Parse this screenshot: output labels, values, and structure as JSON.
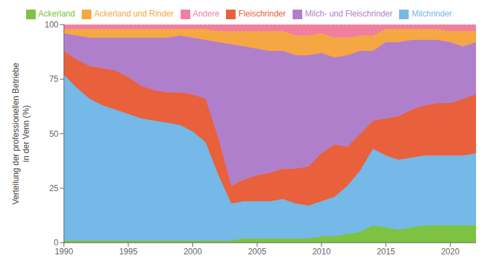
{
  "chart_data": {
    "type": "area",
    "stacked": true,
    "x": [
      1990,
      1991,
      1992,
      1993,
      1994,
      1995,
      1996,
      1997,
      1998,
      1999,
      2000,
      2001,
      2002,
      2003,
      2004,
      2005,
      2006,
      2007,
      2008,
      2009,
      2010,
      2011,
      2012,
      2013,
      2014,
      2015,
      2016,
      2017,
      2018,
      2019,
      2020,
      2021,
      2022
    ],
    "series": [
      {
        "name": "Ackerland",
        "color": "#7dc242",
        "values": [
          1,
          1,
          1,
          1,
          1,
          1,
          1,
          1,
          1,
          1,
          1,
          1,
          1,
          1,
          2,
          2,
          2,
          2,
          2,
          2,
          3,
          3,
          4,
          5,
          8,
          7,
          6,
          7,
          8,
          8,
          8,
          8,
          8
        ]
      },
      {
        "name": "Milchrinder",
        "color": "#74b9e8",
        "values": [
          76,
          70,
          65,
          62,
          60,
          58,
          56,
          55,
          54,
          53,
          50,
          45,
          30,
          17,
          17,
          17,
          17,
          18,
          16,
          15,
          16,
          18,
          22,
          28,
          35,
          33,
          32,
          32,
          32,
          32,
          32,
          32,
          33
        ]
      },
      {
        "name": "Fleischrinder",
        "color": "#e8603c",
        "values": [
          11,
          13,
          15,
          17,
          18,
          17,
          15,
          14,
          14,
          15,
          17,
          20,
          17,
          8,
          10,
          12,
          13,
          14,
          16,
          18,
          22,
          24,
          18,
          17,
          13,
          17,
          20,
          22,
          23,
          24,
          24,
          26,
          27
        ]
      },
      {
        "name": "Milch- und Fleischrinder",
        "color": "#b07fcc",
        "values": [
          8,
          11,
          13,
          14,
          15,
          18,
          22,
          24,
          25,
          26,
          26,
          27,
          44,
          65,
          61,
          58,
          56,
          54,
          52,
          51,
          46,
          40,
          42,
          38,
          32,
          35,
          34,
          32,
          30,
          29,
          28,
          24,
          24
        ]
      },
      {
        "name": "Ackerland und Rinder",
        "color": "#f5a742",
        "values": [
          2,
          3,
          4,
          4,
          4,
          4,
          4,
          4,
          4,
          3,
          4,
          5,
          5,
          6,
          7,
          8,
          9,
          9,
          9,
          9,
          9,
          9,
          8,
          7,
          7,
          6,
          6,
          5,
          5,
          5,
          5,
          7,
          5
        ]
      },
      {
        "name": "Andere",
        "color": "#f07fa0",
        "values": [
          2,
          2,
          2,
          2,
          2,
          2,
          2,
          2,
          2,
          2,
          2,
          2,
          3,
          3,
          3,
          3,
          3,
          3,
          5,
          5,
          4,
          6,
          6,
          5,
          5,
          2,
          2,
          2,
          2,
          2,
          3,
          3,
          3
        ]
      }
    ],
    "y_label": "Verteilung der professionellen Betriebe\nin der Venn (%)",
    "xlim": [
      1990,
      2022
    ],
    "xticks": [
      1990,
      1995,
      2000,
      2005,
      2010,
      2015,
      2020
    ],
    "ylim": [
      0,
      100
    ],
    "yticks": [
      0,
      25,
      50,
      75,
      100
    ],
    "grid": "y",
    "legend": "top"
  }
}
